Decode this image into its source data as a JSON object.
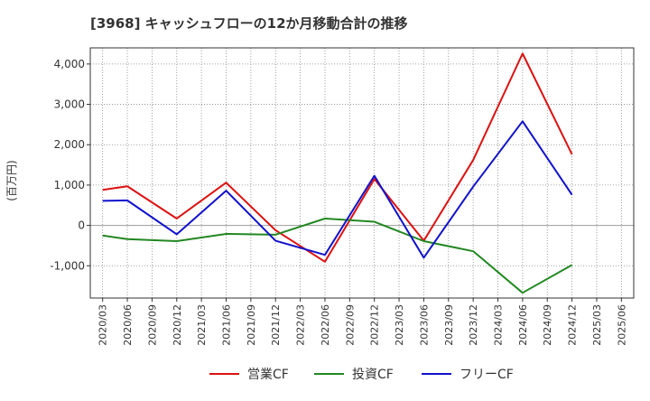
{
  "chart_data": {
    "type": "line",
    "title": "[3968]  キャッシュフローの12か月移動合計の推移",
    "ylabel": "(百万円)",
    "xlabel": "",
    "ylim": [
      -1800,
      4400
    ],
    "yticks": [
      -1000,
      0,
      1000,
      2000,
      3000,
      4000
    ],
    "ytick_labels": [
      "-1,000",
      "0",
      "1,000",
      "2,000",
      "3,000",
      "4,000"
    ],
    "categories": [
      "2020/03",
      "2020/06",
      "2020/09",
      "2020/12",
      "2021/03",
      "2021/06",
      "2021/09",
      "2021/12",
      "2022/03",
      "2022/06",
      "2022/09",
      "2022/12",
      "2023/03",
      "2023/06",
      "2023/09",
      "2023/12",
      "2024/03",
      "2024/06",
      "2024/09",
      "2024/12",
      "2025/03",
      "2025/06"
    ],
    "grid": true,
    "legend": "bottom",
    "series": [
      {
        "name": "営業CF",
        "color": "#dd1111",
        "values": [
          880,
          970,
          null,
          170,
          null,
          1060,
          null,
          -120,
          null,
          -900,
          null,
          1150,
          null,
          -380,
          null,
          1620,
          null,
          4260,
          null,
          1760,
          null,
          null
        ]
      },
      {
        "name": "投資CF",
        "color": "#228822",
        "values": [
          -250,
          -340,
          null,
          -390,
          null,
          -210,
          null,
          -230,
          null,
          170,
          null,
          90,
          null,
          -390,
          null,
          -640,
          null,
          -1670,
          null,
          -980,
          null,
          null
        ]
      },
      {
        "name": "フリーCF",
        "color": "#1111cc",
        "values": [
          610,
          620,
          null,
          -220,
          null,
          860,
          null,
          -380,
          null,
          -730,
          null,
          1230,
          null,
          -800,
          null,
          960,
          null,
          2580,
          null,
          760,
          null,
          null
        ]
      }
    ]
  }
}
